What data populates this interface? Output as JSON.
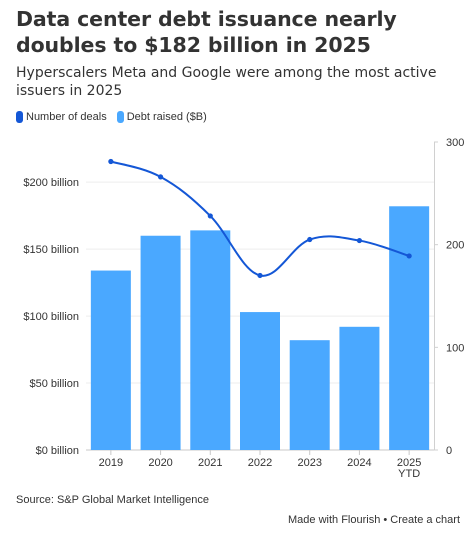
{
  "header": {
    "title": "Data center debt issuance nearly doubles to $182 billion in 2025",
    "subtitle": "Hyperscalers Meta and Google were among the most active issuers in 2025"
  },
  "legend": {
    "items": [
      {
        "label": "Number of deals",
        "color": "#1457d6"
      },
      {
        "label": "Debt raised ($B)",
        "color": "#4aa8ff"
      }
    ]
  },
  "chart_data": {
    "type": "bar",
    "categories": [
      "2019",
      "2020",
      "2021",
      "2022",
      "2023",
      "2024",
      "2025 YTD"
    ],
    "category_lines": [
      [
        "2019"
      ],
      [
        "2020"
      ],
      [
        "2021"
      ],
      [
        "2022"
      ],
      [
        "2023"
      ],
      [
        "2024"
      ],
      [
        "2025",
        "YTD"
      ]
    ],
    "series": [
      {
        "name": "Debt raised ($B)",
        "type": "bar",
        "axis": "left",
        "color": "#4aa8ff",
        "values": [
          134,
          160,
          164,
          103,
          82,
          92,
          182
        ]
      },
      {
        "name": "Number of deals",
        "type": "line",
        "axis": "right",
        "color": "#1457d6",
        "values": [
          281,
          266,
          228,
          170,
          205,
          204,
          189
        ]
      }
    ],
    "y_left": {
      "min": 0,
      "max": 230,
      "ticks": [
        0,
        50,
        100,
        150,
        200
      ],
      "tick_labels": [
        "$0 billion",
        "$50 billion",
        "$100 billion",
        "$150 billion",
        "$200 billion"
      ]
    },
    "y_right": {
      "min": 0,
      "max": 300,
      "ticks": [
        0,
        100,
        200,
        300
      ],
      "tick_labels": [
        "0",
        "100",
        "200",
        "300"
      ]
    },
    "grid": true
  },
  "footer": {
    "source": "Source: S&P Global Market Intelligence",
    "made_with": "Made with Flourish",
    "separator": " • ",
    "create": "Create a chart"
  }
}
